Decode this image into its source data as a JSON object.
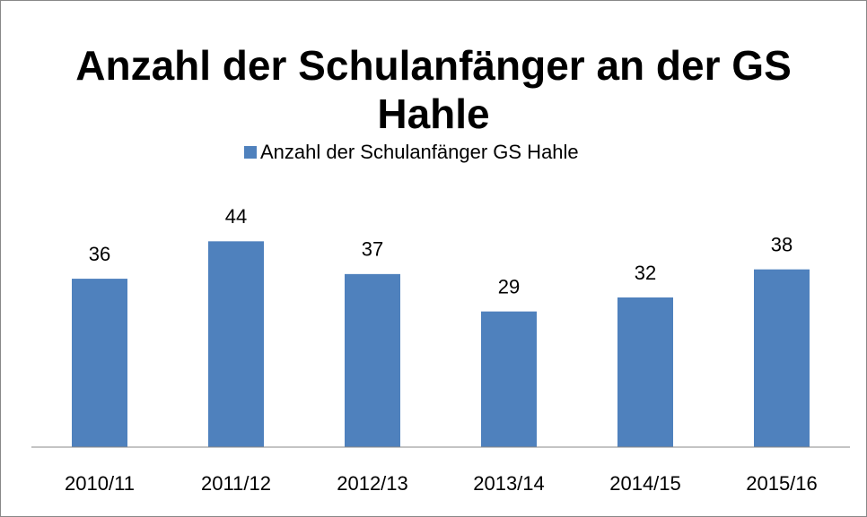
{
  "chart_data": {
    "type": "bar",
    "title": "Anzahl der Schulanfänger an der GS Hahle",
    "categories": [
      "2010/11",
      "2011/12",
      "2012/13",
      "2013/14",
      "2014/15",
      "2015/16"
    ],
    "series": [
      {
        "name": "Anzahl der Schulanfänger GS Hahle",
        "color": "#4f81bd",
        "values": [
          36,
          44,
          37,
          29,
          32,
          38
        ]
      }
    ],
    "ylim": [
      0,
      50
    ],
    "legend": "top"
  }
}
